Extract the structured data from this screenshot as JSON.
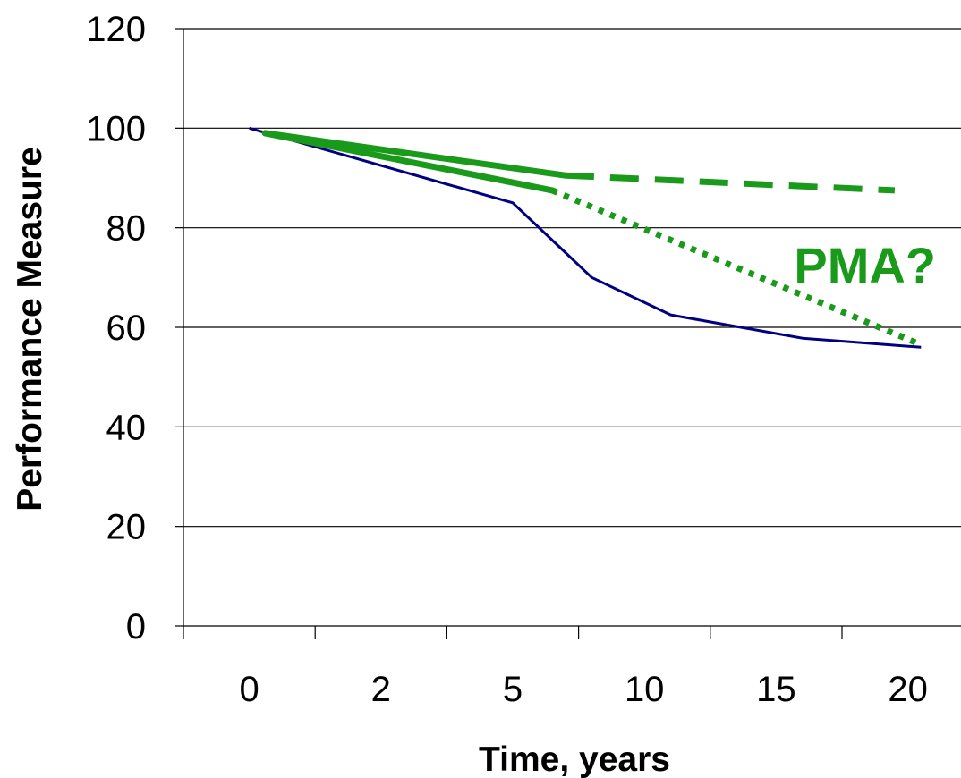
{
  "chart_data": {
    "type": "line",
    "title": "",
    "xlabel": "Time, years",
    "ylabel": "Performance Measure",
    "categories": [
      "0",
      "2",
      "5",
      "10",
      "15",
      "20"
    ],
    "y_ticks": [
      "0",
      "20",
      "40",
      "60",
      "80",
      "100",
      "120"
    ],
    "ylim": [
      0,
      120
    ],
    "grid": "horizontal",
    "annotation": "PMA?",
    "series": [
      {
        "color": "#000080",
        "style": "solid-thin",
        "x": [
          0,
          2.0,
          2.6,
          3.2,
          4.2,
          5.1
        ],
        "y": [
          100,
          85,
          70,
          62.5,
          57.8,
          56
        ]
      },
      {
        "color": "#1a9a1a",
        "style": "solid-thick",
        "x": [
          0.12,
          2.3
        ],
        "y": [
          99,
          87.5
        ]
      },
      {
        "color": "#1a9a1a",
        "style": "dotted",
        "x": [
          2.3,
          5.1
        ],
        "y": [
          87.5,
          56.5
        ]
      },
      {
        "color": "#1a9a1a",
        "style": "solid-thick",
        "x": [
          0.12,
          2.4
        ],
        "y": [
          99,
          90.5
        ]
      },
      {
        "color": "#1a9a1a",
        "style": "dashed",
        "x": [
          2.4,
          4.9
        ],
        "y": [
          90.5,
          87.5
        ]
      }
    ]
  }
}
